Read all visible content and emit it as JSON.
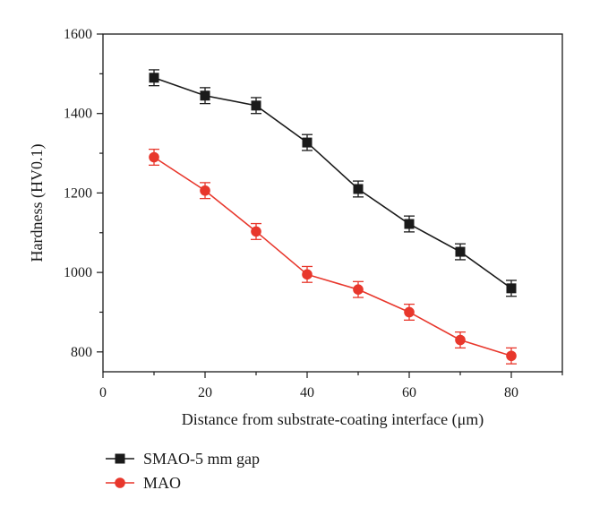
{
  "chart_data": {
    "type": "line",
    "xlabel": "Distance from substrate-coating interface (μm)",
    "ylabel": "Hardness (HV0.1)",
    "xlim": [
      0,
      90
    ],
    "ylim": [
      750,
      1600
    ],
    "x_ticks": [
      0,
      20,
      40,
      60,
      80
    ],
    "y_ticks": [
      800,
      1000,
      1200,
      1400,
      1600
    ],
    "x_tick_labels": [
      "0",
      "20",
      "40",
      "60",
      "80"
    ],
    "y_tick_labels": [
      "800",
      "1000",
      "1200",
      "1400",
      "1600"
    ],
    "grid": false,
    "legend_position": "bottom-left",
    "x": [
      10,
      20,
      30,
      40,
      50,
      60,
      70,
      80
    ],
    "series": [
      {
        "name": "SMAO-5 mm gap",
        "marker": "square",
        "color": "#1a1a1a",
        "values": [
          1490,
          1445,
          1420,
          1327,
          1210,
          1122,
          1052,
          960
        ],
        "error": [
          20,
          20,
          20,
          20,
          20,
          20,
          20,
          20
        ]
      },
      {
        "name": "MAO",
        "marker": "circle",
        "color": "#e8372c",
        "values": [
          1290,
          1206,
          1103,
          995,
          957,
          900,
          830,
          790
        ],
        "error": [
          20,
          20,
          20,
          20,
          20,
          20,
          20,
          20
        ]
      }
    ]
  }
}
